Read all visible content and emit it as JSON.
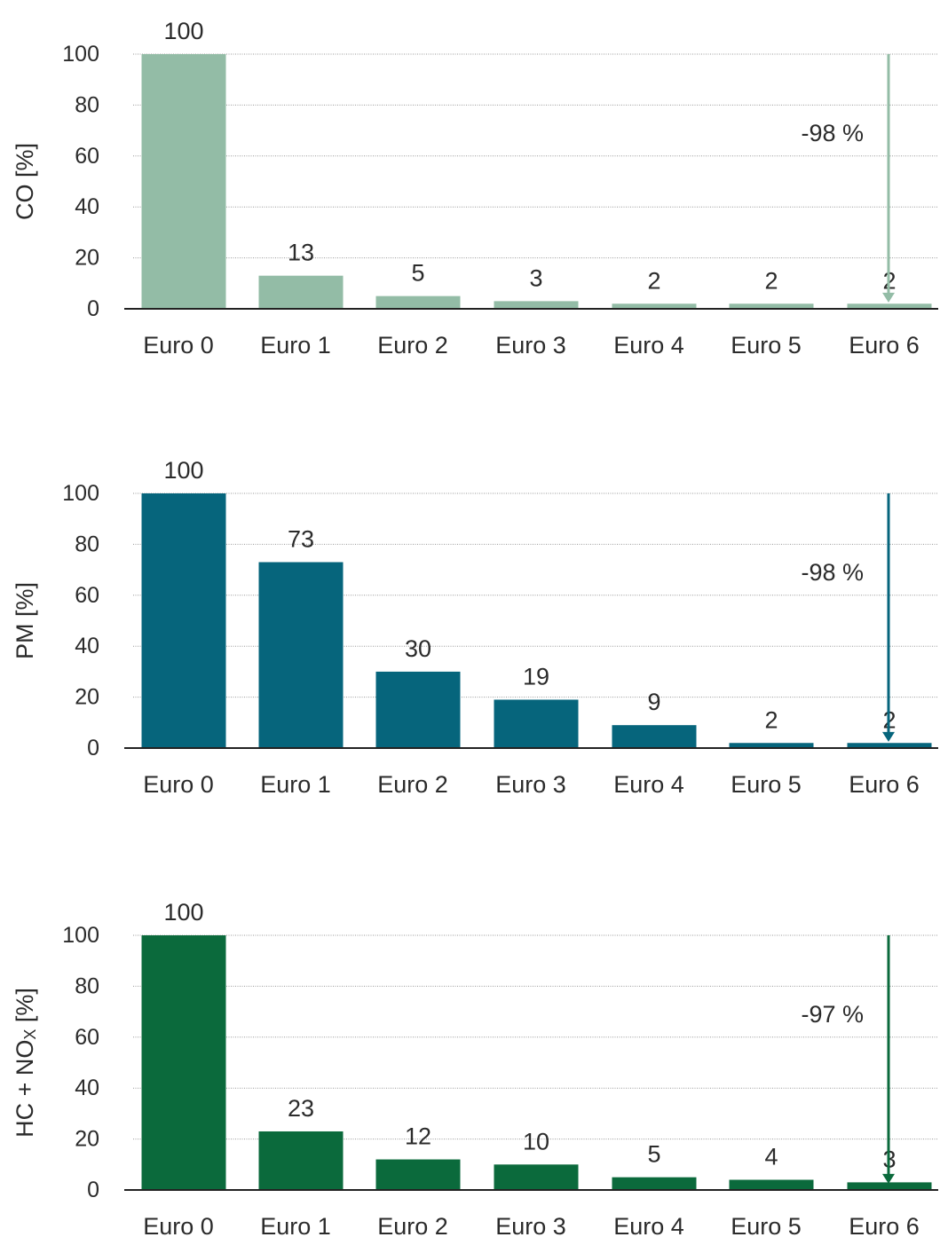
{
  "chart_data": [
    {
      "type": "bar",
      "ylabel": "CO [%]",
      "categories": [
        "Euro 0",
        "Euro 1",
        "Euro 2",
        "Euro 3",
        "Euro 4",
        "Euro 5",
        "Euro 6"
      ],
      "values": [
        100,
        13,
        5,
        3,
        2,
        2,
        2
      ],
      "ylim": [
        0,
        100
      ],
      "yticks": [
        "0",
        "20",
        "40",
        "60",
        "80",
        "100"
      ],
      "grid": true,
      "color": "#93bca6",
      "annotation": "-98 %"
    },
    {
      "type": "bar",
      "ylabel": "PM [%]",
      "categories": [
        "Euro 0",
        "Euro 1",
        "Euro 2",
        "Euro 3",
        "Euro 4",
        "Euro 5",
        "Euro 6"
      ],
      "values": [
        100,
        73,
        30,
        19,
        9,
        2,
        2
      ],
      "ylim": [
        0,
        100
      ],
      "yticks": [
        "0",
        "20",
        "40",
        "60",
        "80",
        "100"
      ],
      "grid": true,
      "color": "#06657c",
      "annotation": "-98 %"
    },
    {
      "type": "bar",
      "ylabel": "HC + NO",
      "ylabel_sub": "X",
      "ylabel_suffix": " [%]",
      "categories": [
        "Euro 0",
        "Euro 1",
        "Euro 2",
        "Euro 3",
        "Euro 4",
        "Euro 5",
        "Euro 6"
      ],
      "values": [
        100,
        23,
        12,
        10,
        5,
        4,
        3
      ],
      "ylim": [
        0,
        100
      ],
      "yticks": [
        "0",
        "20",
        "40",
        "60",
        "80",
        "100"
      ],
      "grid": true,
      "color": "#0b6a3c",
      "annotation": "-97 %"
    }
  ]
}
